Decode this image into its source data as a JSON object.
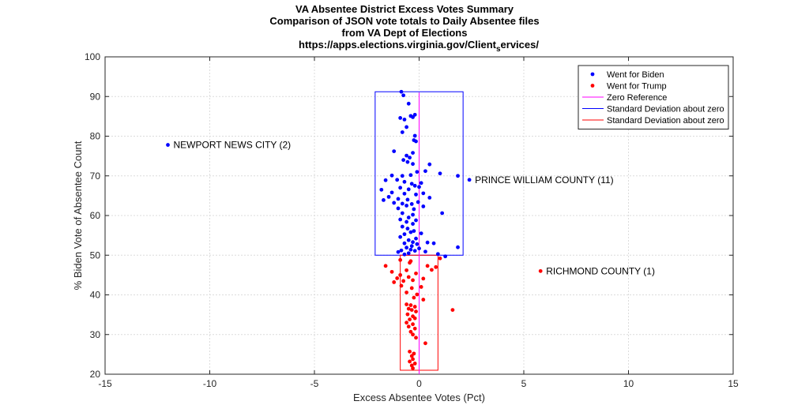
{
  "chart_data": {
    "type": "scatter",
    "title_lines": [
      "VA Absentee District Excess Votes Summary",
      "Comparison of JSON vote totals to Daily Absentee files",
      "from VA Dept of Elections",
      "https://apps.elections.virginia.gov/Client"
    ],
    "title_url_subscript": "s",
    "title_url_tail": "ervices/",
    "xlabel": "Excess Absentee Votes (Pct)",
    "ylabel": "% Biden Vote of Absentee Count",
    "xlim": [
      -15,
      15
    ],
    "ylim": [
      20,
      100
    ],
    "xticks": [
      -15,
      -10,
      -5,
      0,
      5,
      10,
      15
    ],
    "yticks": [
      20,
      30,
      40,
      50,
      60,
      70,
      80,
      90,
      100
    ],
    "grid": true,
    "legend_position": "top-right",
    "colors": {
      "biden": "#0000ff",
      "trump": "#ff0000",
      "zero": "#ff00ff",
      "sd_blue": "#0000ff",
      "sd_red": "#ff0000"
    },
    "legend": [
      {
        "label": "Went for Biden",
        "kind": "dot",
        "color": "#0000ff"
      },
      {
        "label": "Went for Trump",
        "kind": "dot",
        "color": "#ff0000"
      },
      {
        "label": "Zero Reference",
        "kind": "line",
        "color": "#ff00ff"
      },
      {
        "label": "Standard Deviation about zero",
        "kind": "line",
        "color": "#0000ff"
      },
      {
        "label": "Standard Deviation about zero",
        "kind": "line",
        "color": "#ff0000"
      }
    ],
    "zero_reference": {
      "x": 0,
      "y": [
        20,
        91
      ]
    },
    "sd_biden": {
      "x": [
        -2.1,
        2.1
      ],
      "y": [
        50,
        91.2
      ]
    },
    "sd_trump": {
      "x": [
        -0.9,
        0.9
      ],
      "y": [
        21,
        50
      ]
    },
    "annotations": [
      {
        "text": "NEWPORT NEWS CITY (2)",
        "x": -12.0,
        "y": 77.8
      },
      {
        "text": "PRINCE WILLIAM COUNTY (11)",
        "x": 2.4,
        "y": 69.0
      },
      {
        "text": "RICHMOND COUNTY (1)",
        "x": 5.8,
        "y": 46.0
      }
    ],
    "series": [
      {
        "name": "Went for Biden",
        "color": "#0000ff",
        "points": [
          [
            -12.0,
            77.8
          ],
          [
            2.4,
            69.0
          ],
          [
            -0.85,
            91.2
          ],
          [
            -0.75,
            90.3
          ],
          [
            -0.5,
            88.2
          ],
          [
            -0.9,
            84.6
          ],
          [
            -0.7,
            84.2
          ],
          [
            -0.4,
            85.1
          ],
          [
            -0.2,
            85.4
          ],
          [
            -0.3,
            84.8
          ],
          [
            -0.6,
            82.3
          ],
          [
            -0.8,
            81.0
          ],
          [
            -0.2,
            80.1
          ],
          [
            -0.25,
            79.0
          ],
          [
            -0.15,
            78.7
          ],
          [
            -1.2,
            76.2
          ],
          [
            -0.3,
            75.8
          ],
          [
            -0.6,
            75.1
          ],
          [
            -0.45,
            74.6
          ],
          [
            -0.75,
            74.0
          ],
          [
            -0.55,
            73.5
          ],
          [
            -0.3,
            73.0
          ],
          [
            0.5,
            72.9
          ],
          [
            0.3,
            71.2
          ],
          [
            -0.1,
            71.0
          ],
          [
            -1.3,
            70.1
          ],
          [
            -0.8,
            70.0
          ],
          [
            -0.4,
            70.2
          ],
          [
            1.0,
            70.6
          ],
          [
            1.85,
            70.0
          ],
          [
            -1.05,
            69.0
          ],
          [
            -1.6,
            68.9
          ],
          [
            -0.7,
            68.5
          ],
          [
            -0.35,
            68.0
          ],
          [
            0.1,
            68.2
          ],
          [
            -0.2,
            67.5
          ],
          [
            -1.8,
            66.5
          ],
          [
            -0.9,
            67.0
          ],
          [
            -0.5,
            66.6
          ],
          [
            0.0,
            67.2
          ],
          [
            -1.3,
            65.8
          ],
          [
            -0.7,
            65.5
          ],
          [
            -0.15,
            65.3
          ],
          [
            0.2,
            65.6
          ],
          [
            -1.45,
            64.7
          ],
          [
            -1.0,
            64.2
          ],
          [
            -0.55,
            64.0
          ],
          [
            0.5,
            64.5
          ],
          [
            -1.7,
            63.9
          ],
          [
            -1.2,
            63.2
          ],
          [
            -0.8,
            63.0
          ],
          [
            -0.35,
            62.9
          ],
          [
            -0.05,
            63.4
          ],
          [
            -0.6,
            62.5
          ],
          [
            -1.0,
            61.8
          ],
          [
            -0.25,
            61.6
          ],
          [
            0.2,
            62.3
          ],
          [
            1.1,
            60.6
          ],
          [
            -0.8,
            60.6
          ],
          [
            -0.3,
            60.2
          ],
          [
            -0.5,
            59.5
          ],
          [
            -0.9,
            59.0
          ],
          [
            -0.6,
            58.4
          ],
          [
            -0.15,
            58.8
          ],
          [
            -0.3,
            57.9
          ],
          [
            -0.8,
            57.2
          ],
          [
            -0.55,
            56.7
          ],
          [
            -0.25,
            56.1
          ],
          [
            -0.4,
            55.8
          ],
          [
            0.1,
            55.5
          ],
          [
            -0.7,
            55.3
          ],
          [
            -0.9,
            54.6
          ],
          [
            -0.15,
            54.2
          ],
          [
            -0.5,
            53.8
          ],
          [
            -0.3,
            53.3
          ],
          [
            -0.7,
            53.0
          ],
          [
            0.4,
            53.2
          ],
          [
            0.7,
            53.0
          ],
          [
            -0.1,
            52.8
          ],
          [
            -0.35,
            52.3
          ],
          [
            -0.6,
            51.9
          ],
          [
            -0.85,
            51.2
          ],
          [
            -0.4,
            51.4
          ],
          [
            0.0,
            51.7
          ],
          [
            -0.2,
            51.1
          ],
          [
            -1.0,
            50.8
          ],
          [
            -0.5,
            50.5
          ],
          [
            0.3,
            50.9
          ],
          [
            0.9,
            50.3
          ],
          [
            1.25,
            49.7
          ],
          [
            1.85,
            52.0
          ],
          [
            -0.7,
            50.2
          ]
        ]
      },
      {
        "name": "Went for Trump",
        "color": "#ff0000",
        "points": [
          [
            5.8,
            46.0
          ],
          [
            1.6,
            36.2
          ],
          [
            -1.6,
            47.3
          ],
          [
            -0.9,
            48.8
          ],
          [
            -0.4,
            48.5
          ],
          [
            0.4,
            47.3
          ],
          [
            -1.3,
            45.8
          ],
          [
            -0.6,
            46.2
          ],
          [
            0.8,
            47.0
          ],
          [
            1.0,
            49.2
          ],
          [
            -0.9,
            45.0
          ],
          [
            -0.15,
            45.4
          ],
          [
            0.6,
            46.3
          ],
          [
            -1.05,
            44.2
          ],
          [
            -0.5,
            44.5
          ],
          [
            0.2,
            44.1
          ],
          [
            -1.2,
            43.2
          ],
          [
            -0.75,
            43.5
          ],
          [
            -0.3,
            43.7
          ],
          [
            -0.85,
            42.3
          ],
          [
            -0.35,
            41.7
          ],
          [
            -0.6,
            40.6
          ],
          [
            0.1,
            42.0
          ],
          [
            0.2,
            38.8
          ],
          [
            -0.25,
            39.3
          ],
          [
            -0.6,
            37.6
          ],
          [
            -0.4,
            37.4
          ],
          [
            -0.2,
            37.0
          ],
          [
            -0.5,
            36.5
          ],
          [
            -0.35,
            36.2
          ],
          [
            -0.15,
            35.8
          ],
          [
            -0.55,
            35.1
          ],
          [
            -0.3,
            34.6
          ],
          [
            -0.2,
            34.1
          ],
          [
            -0.45,
            33.8
          ],
          [
            -0.6,
            33.0
          ],
          [
            -0.3,
            32.6
          ],
          [
            -0.5,
            32.0
          ],
          [
            -0.2,
            31.5
          ],
          [
            -0.4,
            30.7
          ],
          [
            -0.3,
            30.0
          ],
          [
            -0.15,
            29.2
          ],
          [
            0.3,
            27.8
          ],
          [
            -0.45,
            25.7
          ],
          [
            -0.25,
            25.2
          ],
          [
            -0.35,
            24.6
          ],
          [
            -0.3,
            23.8
          ],
          [
            -0.45,
            23.2
          ],
          [
            -0.2,
            22.7
          ],
          [
            -0.35,
            22.2
          ],
          [
            -0.3,
            21.5
          ],
          [
            -0.45,
            48.1
          ],
          [
            -0.1,
            40.1
          ]
        ]
      }
    ]
  }
}
